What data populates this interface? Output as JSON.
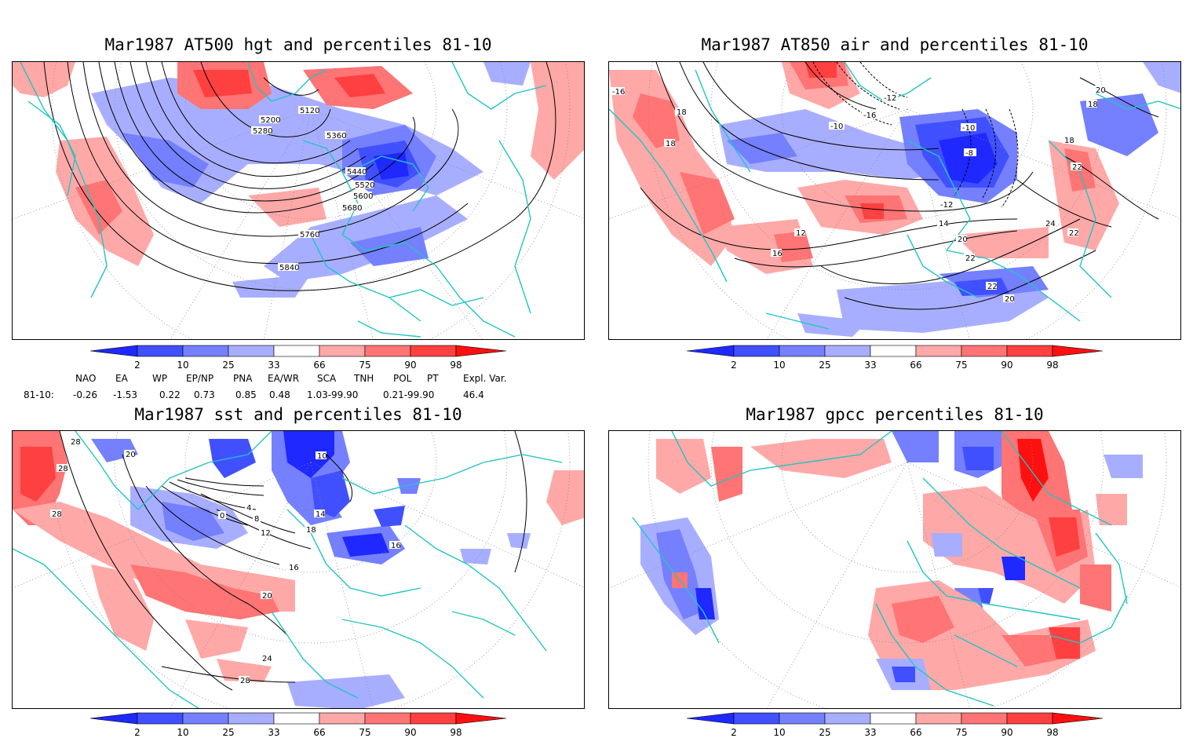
{
  "panels": {
    "tl": {
      "title": "Mar1987 AT500 hgt and percentiles 81-10",
      "contour_labels": [
        "5120",
        "5200",
        "5280",
        "5360",
        "5440",
        "5520",
        "5600",
        "5680",
        "5760",
        "5840"
      ]
    },
    "tr": {
      "title": "Mar1987 AT850 air and percentiles 81-10",
      "contour_labels": [
        "-16",
        "18",
        "18",
        "-10",
        "-12",
        "-10",
        "-8",
        "-16",
        "20",
        "18",
        "18",
        "22",
        "12",
        "16",
        "14",
        "20",
        "22",
        "24",
        "22",
        "22",
        "20",
        "-12"
      ]
    },
    "bl": {
      "title": "Mar1987 sst and percentiles 81-10",
      "contour_labels": [
        "28",
        "20",
        "28",
        "28",
        "0",
        "4",
        "8",
        "12",
        "16",
        "20",
        "24",
        "28",
        "10",
        "18",
        "14",
        "16"
      ]
    },
    "br": {
      "title": "Mar1987 gpcc percentiles 81-10"
    }
  },
  "colorbar": {
    "ticks": [
      "2",
      "10",
      "25",
      "33",
      "66",
      "75",
      "90",
      "98"
    ],
    "colors": [
      "#1e28ff",
      "#4050ff",
      "#7480ff",
      "#a8aeff",
      "#ffffff",
      "#ffa8a8",
      "#ff7474",
      "#ff4040",
      "#ff1010"
    ]
  },
  "indices": {
    "headers": [
      "NAO",
      "EA",
      "WP",
      "EP/NP",
      "PNA",
      "EA/WR",
      "SCA",
      "TNH",
      "POL",
      "PT",
      "Expl. Var."
    ],
    "row_label": "81-10:",
    "values": [
      "-0.26",
      "-1.53",
      "0.22",
      "0.73",
      "0.85",
      "0.48",
      "1.03-99.90",
      "0.21-99.90",
      "46.4"
    ]
  },
  "map_colors": {
    "coast": "#22c4c4",
    "contour": "#000000"
  }
}
